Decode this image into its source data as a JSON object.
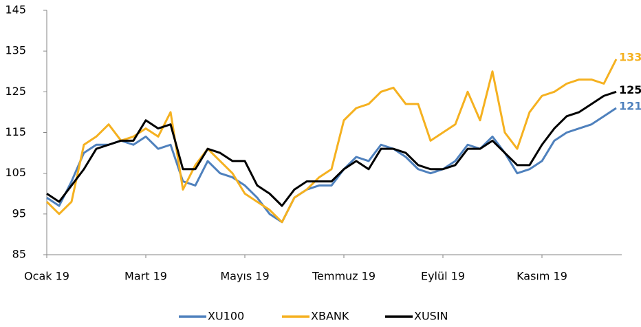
{
  "chart_data": {
    "type": "line",
    "categories": [
      "Ocak 19",
      null,
      null,
      null,
      null,
      null,
      null,
      null,
      "Mart 19",
      null,
      null,
      null,
      null,
      null,
      null,
      null,
      "Mayıs 19",
      null,
      null,
      null,
      null,
      null,
      null,
      null,
      "Temmuz 19",
      null,
      null,
      null,
      null,
      null,
      null,
      null,
      "Eylül 19",
      null,
      null,
      null,
      null,
      null,
      null,
      null,
      "Kasım 19",
      null,
      null,
      null,
      null,
      null,
      null
    ],
    "series": [
      {
        "name": "XU100",
        "color": "#4f81bd",
        "values": [
          99,
          97,
          103,
          110,
          112,
          112,
          113,
          112,
          114,
          111,
          112,
          103,
          102,
          108,
          105,
          104,
          102,
          99,
          95,
          93,
          99,
          101,
          102,
          102,
          106,
          109,
          108,
          112,
          111,
          109,
          106,
          105,
          106,
          108,
          112,
          111,
          114,
          110,
          105,
          106,
          108,
          113,
          115,
          116,
          117,
          119,
          121
        ]
      },
      {
        "name": "XBANK",
        "color": "#f5b120",
        "values": [
          98,
          95,
          98,
          112,
          114,
          117,
          113,
          114,
          116,
          114,
          120,
          101,
          107,
          111,
          108,
          105,
          100,
          98,
          96,
          93,
          99,
          101,
          104,
          106,
          118,
          121,
          122,
          125,
          126,
          122,
          122,
          113,
          115,
          117,
          125,
          118,
          130,
          115,
          111,
          120,
          124,
          125,
          127,
          128,
          128,
          127,
          133
        ]
      },
      {
        "name": "XUSIN",
        "color": "#000000",
        "values": [
          100,
          98,
          102,
          106,
          111,
          112,
          113,
          113,
          118,
          116,
          117,
          106,
          106,
          111,
          110,
          108,
          108,
          102,
          100,
          97,
          101,
          103,
          103,
          103,
          106,
          108,
          106,
          111,
          111,
          110,
          107,
          106,
          106,
          107,
          111,
          111,
          113,
          110,
          107,
          107,
          112,
          116,
          119,
          120,
          122,
          124,
          125
        ]
      }
    ],
    "ylim": [
      85,
      145
    ],
    "yticks": [
      85,
      95,
      105,
      115,
      125,
      135,
      145
    ],
    "grid": false,
    "legend": "bottom"
  }
}
